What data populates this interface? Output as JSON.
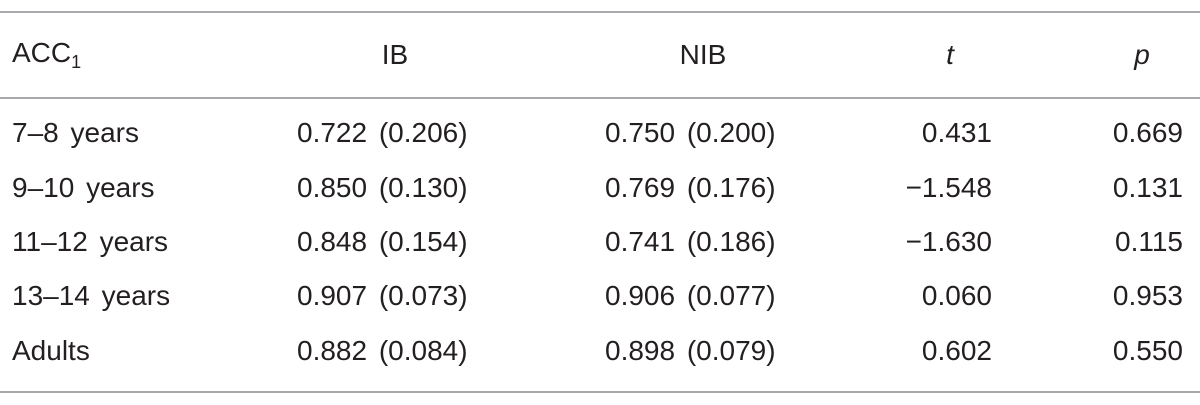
{
  "table": {
    "header": [
      {
        "text": "ACC",
        "subscript": "1"
      },
      "IB",
      "NIB",
      "t",
      "p"
    ],
    "rows": [
      [
        "7–8 years",
        "0.722 (0.206)",
        "0.750 (0.200)",
        "0.431",
        "0.669"
      ],
      [
        "9–10 years",
        "0.850 (0.130)",
        "0.769 (0.176)",
        "−1.548",
        "0.131"
      ],
      [
        "11–12 years",
        "0.848 (0.154)",
        "0.741 (0.186)",
        "−1.630",
        "0.115"
      ],
      [
        "13–14 years",
        "0.907 (0.073)",
        "0.906 (0.077)",
        "0.060",
        "0.953"
      ],
      [
        "Adults",
        "0.882 (0.084)",
        "0.898 (0.079)",
        "0.602",
        "0.550"
      ]
    ]
  }
}
